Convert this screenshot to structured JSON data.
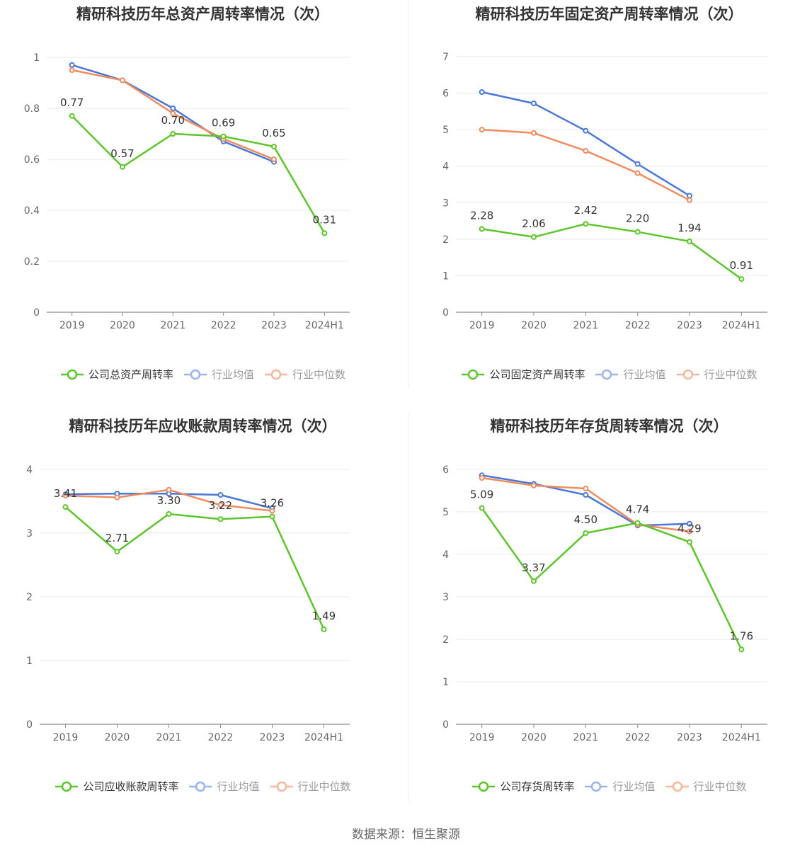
{
  "source": "数据来源：恒生聚源",
  "colors": {
    "company": "#5cc52a",
    "average": "#4a78d8",
    "median": "#f08b5e"
  },
  "chart_data": [
    {
      "type": "line",
      "title": "精研科技历年总资产周转率情况（次）",
      "categories": [
        "2019",
        "2020",
        "2021",
        "2022",
        "2023",
        "2024H1"
      ],
      "ylim": [
        0,
        1
      ],
      "yticks": [
        "0",
        "0.2",
        "0.4",
        "0.6",
        "0.8",
        "1"
      ],
      "ytick_values": [
        0,
        0.2,
        0.4,
        0.6,
        0.8,
        1
      ],
      "series": [
        {
          "name": "公司总资产周转率",
          "values": [
            0.77,
            0.57,
            0.7,
            0.69,
            0.65,
            0.31
          ],
          "labels": [
            "0.77",
            "0.57",
            "0.70",
            "0.69",
            "0.65",
            "0.31"
          ]
        },
        {
          "name": "行业均值",
          "values": [
            0.97,
            0.91,
            0.8,
            0.67,
            0.59,
            null
          ]
        },
        {
          "name": "行业中位数",
          "values": [
            0.95,
            0.91,
            0.78,
            0.68,
            0.6,
            null
          ]
        }
      ]
    },
    {
      "type": "line",
      "title": "精研科技历年固定资产周转率情况（次）",
      "categories": [
        "2019",
        "2020",
        "2021",
        "2022",
        "2023",
        "2024H1"
      ],
      "ylim": [
        0,
        7
      ],
      "yticks": [
        "0",
        "1",
        "2",
        "3",
        "4",
        "5",
        "6",
        "7"
      ],
      "ytick_values": [
        0,
        1,
        2,
        3,
        4,
        5,
        6,
        7
      ],
      "series": [
        {
          "name": "公司固定资产周转率",
          "values": [
            2.28,
            2.06,
            2.42,
            2.2,
            1.94,
            0.91
          ],
          "labels": [
            "2.28",
            "2.06",
            "2.42",
            "2.20",
            "1.94",
            "0.91"
          ]
        },
        {
          "name": "行业均值",
          "values": [
            6.03,
            5.72,
            4.97,
            4.06,
            3.19,
            null
          ]
        },
        {
          "name": "行业中位数",
          "values": [
            5.0,
            4.91,
            4.42,
            3.81,
            3.07,
            null
          ]
        }
      ]
    },
    {
      "type": "line",
      "title": "精研科技历年应收账款周转率情况（次）",
      "categories": [
        "2019",
        "2020",
        "2021",
        "2022",
        "2023",
        "2024H1"
      ],
      "ylim": [
        0,
        4
      ],
      "yticks": [
        "0",
        "1",
        "2",
        "3",
        "4"
      ],
      "ytick_values": [
        0,
        1,
        2,
        3,
        4
      ],
      "series": [
        {
          "name": "公司应收账款周转率",
          "values": [
            3.41,
            2.71,
            3.3,
            3.22,
            3.26,
            1.49
          ],
          "labels": [
            "3.41",
            "2.71",
            "3.30",
            "3.22",
            "3.26",
            "1.49"
          ]
        },
        {
          "name": "行业均值",
          "values": [
            3.61,
            3.62,
            3.62,
            3.6,
            3.39,
            null
          ]
        },
        {
          "name": "行业中位数",
          "values": [
            3.59,
            3.56,
            3.68,
            3.44,
            3.35,
            null
          ]
        }
      ]
    },
    {
      "type": "line",
      "title": "精研科技历年存货周转率情况（次）",
      "categories": [
        "2019",
        "2020",
        "2021",
        "2022",
        "2023",
        "2024H1"
      ],
      "ylim": [
        0,
        6
      ],
      "yticks": [
        "0",
        "1",
        "2",
        "3",
        "4",
        "5",
        "6"
      ],
      "ytick_values": [
        0,
        1,
        2,
        3,
        4,
        5,
        6
      ],
      "series": [
        {
          "name": "公司存货周转率",
          "values": [
            5.09,
            3.37,
            4.5,
            4.74,
            4.29,
            1.76
          ],
          "labels": [
            "5.09",
            "3.37",
            "4.50",
            "4.74",
            "4.29",
            "1.76"
          ]
        },
        {
          "name": "行业均值",
          "values": [
            5.86,
            5.66,
            5.4,
            4.68,
            4.72,
            null
          ]
        },
        {
          "name": "行业中位数",
          "values": [
            5.8,
            5.62,
            5.55,
            4.7,
            4.54,
            null
          ]
        }
      ]
    }
  ]
}
